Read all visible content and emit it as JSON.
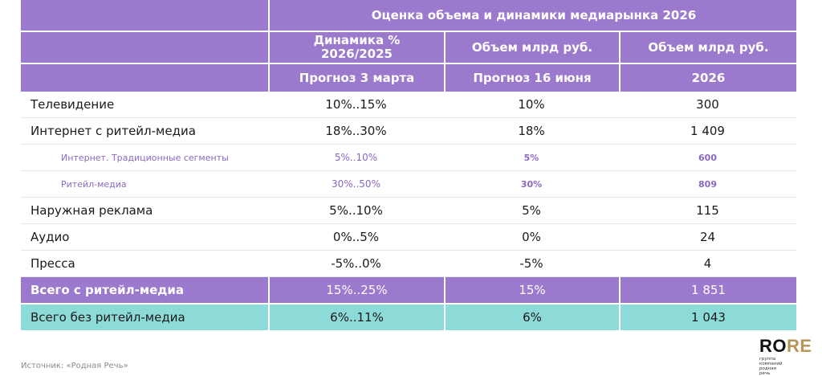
{
  "header": {
    "title": "Оценка объема и динамики медиарынка 2026",
    "col1": "Динамика % 2026/2025",
    "col2": "Объем млрд руб.",
    "col3": "Объем млрд руб.",
    "col1_sub": "Прогноз 3 марта",
    "col2_sub": "Прогноз 16 июня",
    "col3_sub": "2026"
  },
  "rows": [
    {
      "label": "Телевидение",
      "dyn": "10%..15%",
      "vol": "10%",
      "val": "300"
    },
    {
      "label": "Интернет с ритейл-медиа",
      "dyn": "18%..30%",
      "vol": "18%",
      "val": "1 409"
    },
    {
      "label": "Интернет. Традиционные сегменты",
      "dyn": "5%..10%",
      "vol": "5%",
      "val": "600"
    },
    {
      "label": "Ритейл-медиа",
      "dyn": "30%..50%",
      "vol": "30%",
      "val": "809"
    },
    {
      "label": "Наружная реклама",
      "dyn": "5%..10%",
      "vol": "5%",
      "val": "115"
    },
    {
      "label": "Аудио",
      "dyn": "0%..5%",
      "vol": "0%",
      "val": "24"
    },
    {
      "label": "Пресса",
      "dyn": "-5%..0%",
      "vol": "-5%",
      "val": "4"
    }
  ],
  "totals": [
    {
      "label": "Всего с ритейл-медиа",
      "dyn": "15%..25%",
      "vol": "15%",
      "val": "1 851"
    },
    {
      "label": "Всего без ритейл-медиа",
      "dyn": "6%..11%",
      "vol": "6%",
      "val": "1 043"
    }
  ],
  "footer": {
    "source": "Источник: «Родная Речь»",
    "logo_ro": "RO",
    "logo_re": "RE",
    "logo_sub": "группа компаний родная речь"
  },
  "colors": {
    "header_purple": "#9b79cc",
    "teal": "#8ddbd8",
    "sub_text_purple": "#8a68c2",
    "logo_gold": "#b8955a"
  }
}
